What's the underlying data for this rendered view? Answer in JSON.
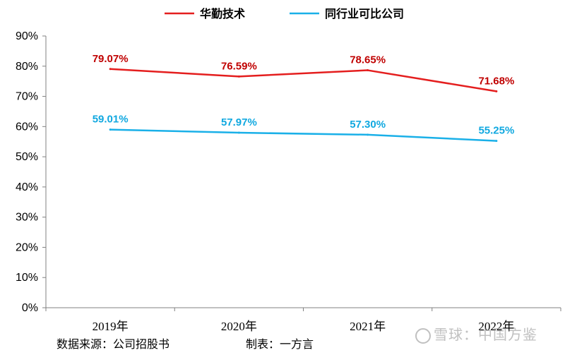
{
  "chart_data": {
    "type": "line",
    "categories": [
      "2019年",
      "2020年",
      "2021年",
      "2022年"
    ],
    "series": [
      {
        "name": "华勤技术",
        "values": [
          79.07,
          76.59,
          78.65,
          71.68
        ],
        "labels": [
          "79.07%",
          "76.59%",
          "78.65%",
          "71.68%"
        ],
        "color": "#e41e1e",
        "label_color": "#c00000"
      },
      {
        "name": "同行业可比公司",
        "values": [
          59.01,
          57.97,
          57.3,
          55.25
        ],
        "labels": [
          "59.01%",
          "57.97%",
          "57.30%",
          "55.25%"
        ],
        "color": "#1ab0e8",
        "label_color": "#10a8e0"
      }
    ],
    "ylim": [
      0,
      90
    ],
    "yticks": [
      "0%",
      "10%",
      "20%",
      "30%",
      "40%",
      "50%",
      "60%",
      "70%",
      "80%",
      "90%"
    ],
    "grid": false,
    "legend_position": "top"
  },
  "footer": {
    "source": "数据来源：公司招股书",
    "maker": "制表：一方言"
  },
  "watermark": "雪球：中国方鉴"
}
